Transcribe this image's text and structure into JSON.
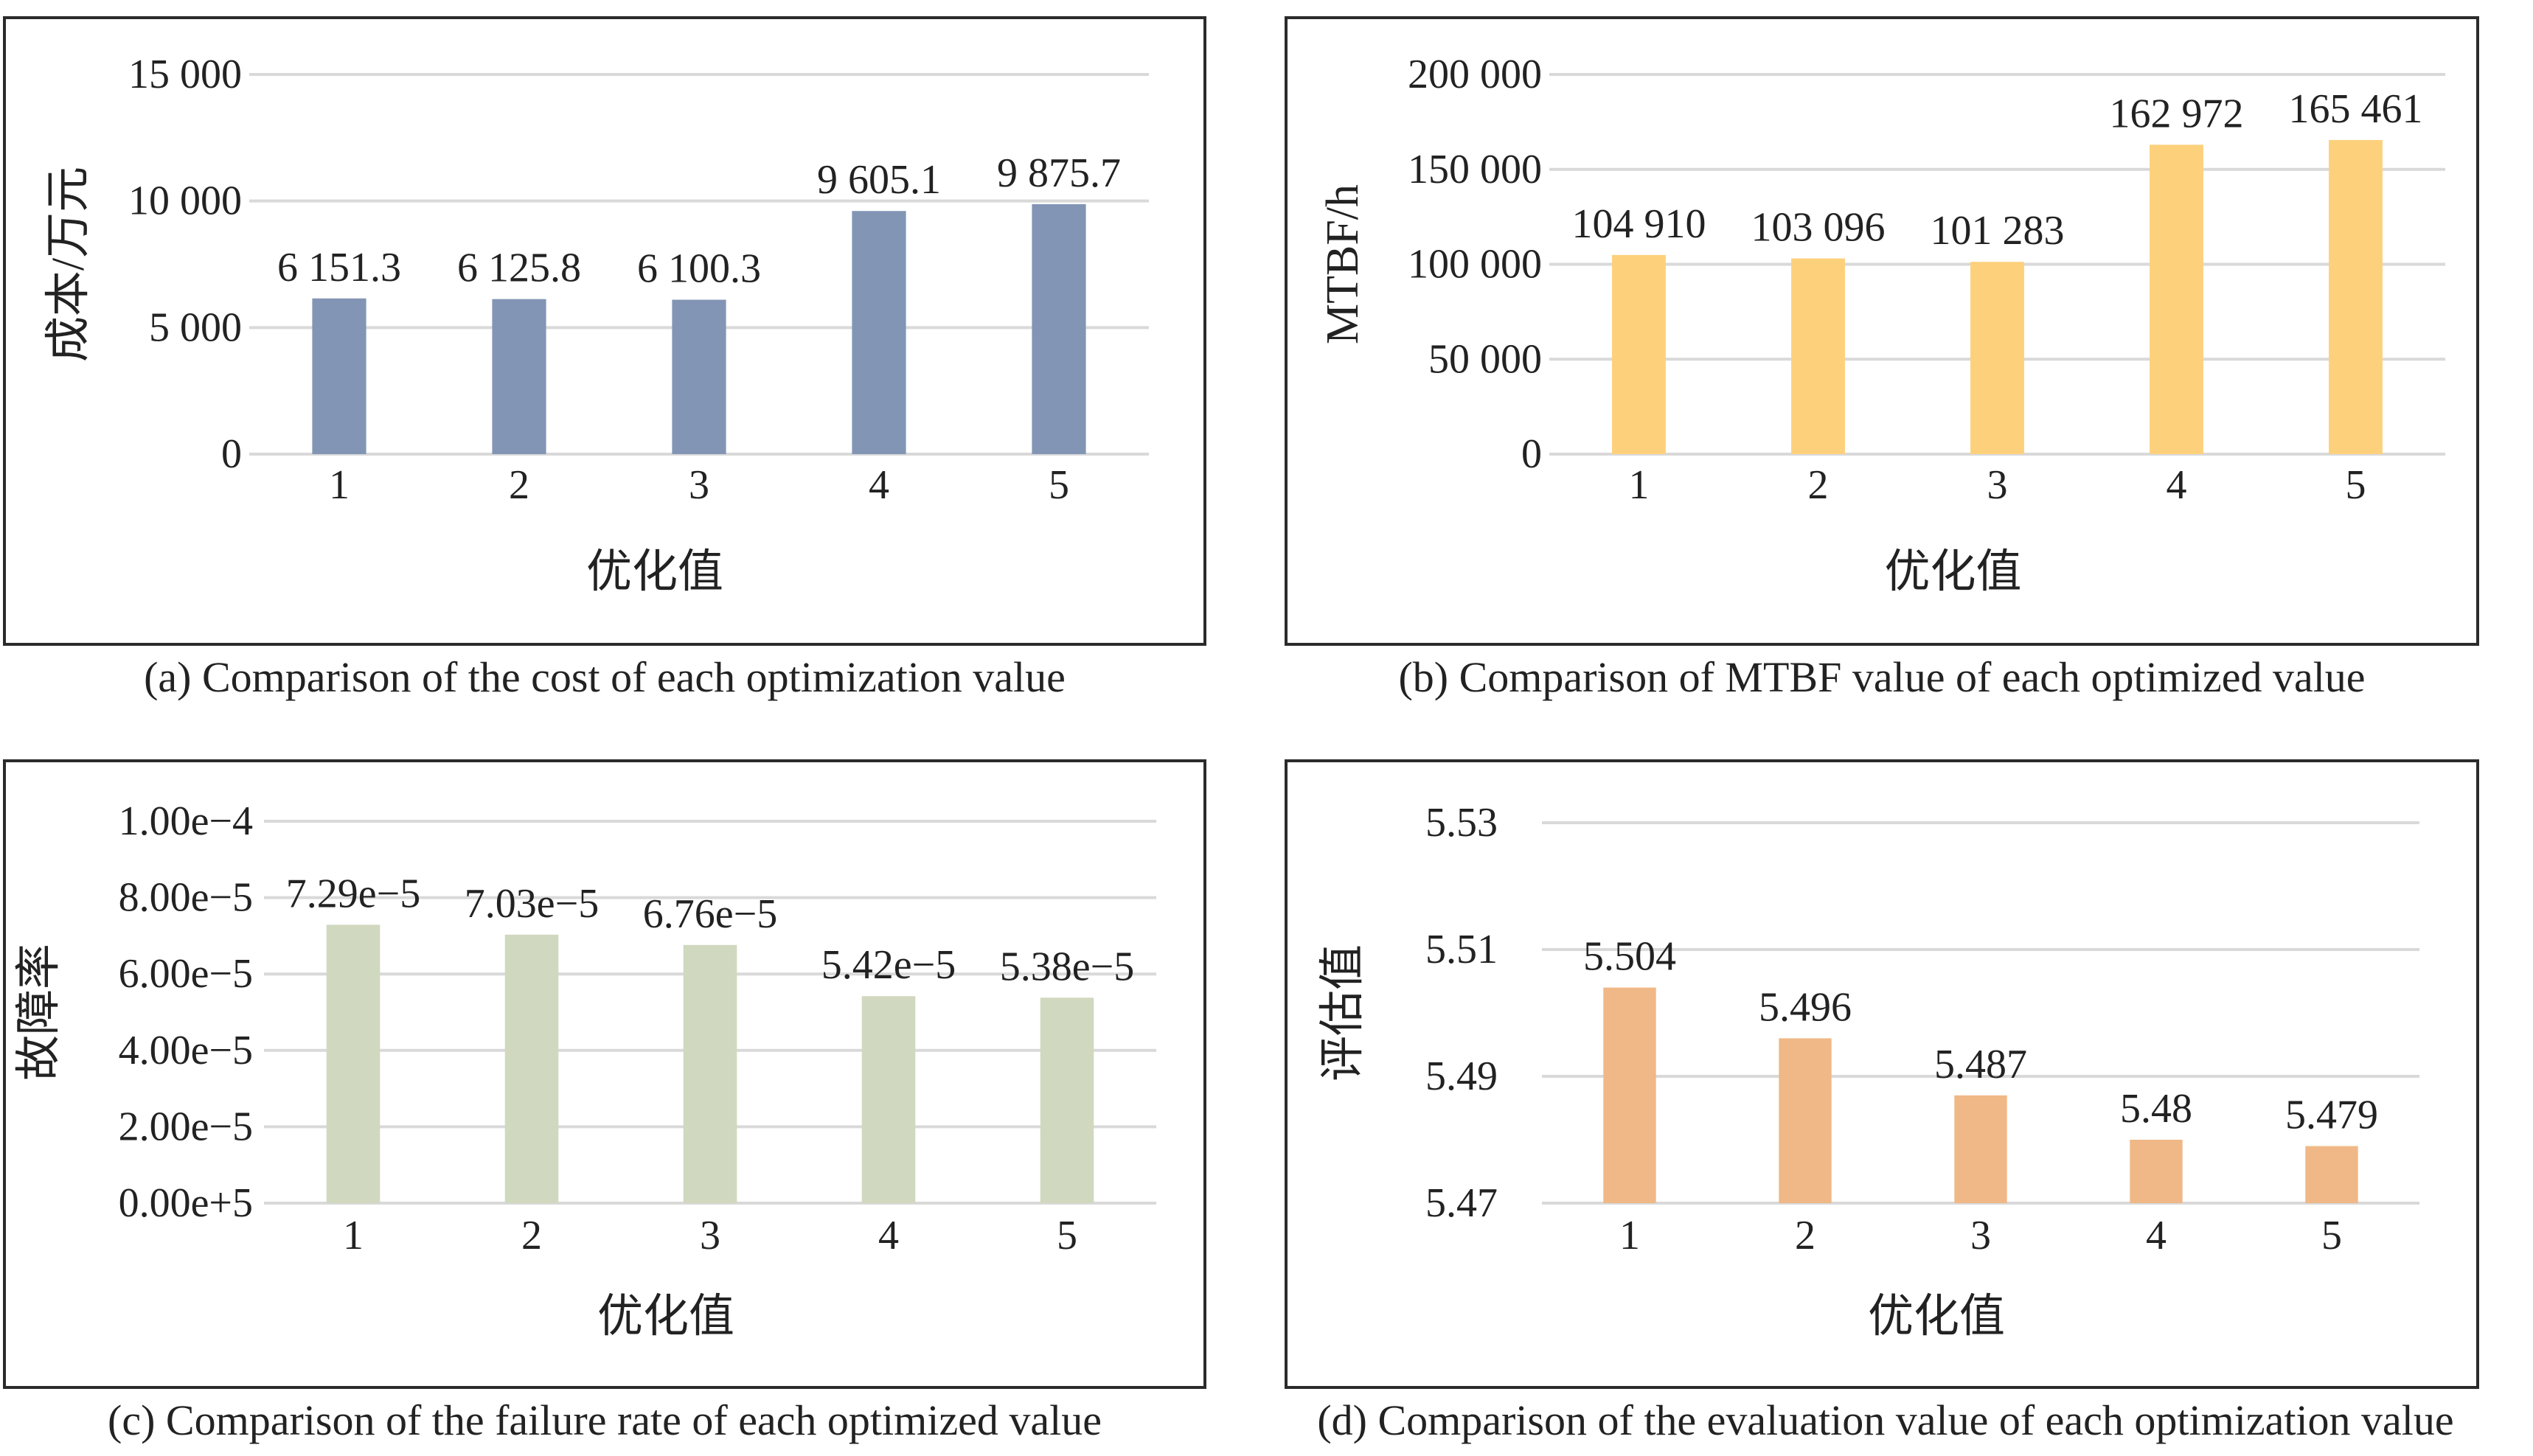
{
  "panels": [
    {
      "caption": "(a) Comparison of the cost of each optimization value",
      "chart_data": {
        "type": "bar",
        "categories": [
          "1",
          "2",
          "3",
          "4",
          "5"
        ],
        "values": [
          6151.3,
          6125.8,
          6100.3,
          9605.1,
          9875.7
        ],
        "value_labels": [
          "6 151.3",
          "6 125.8",
          "6 100.3",
          "9 605.1",
          "9 875.7"
        ],
        "xlabel": "优化值",
        "ylabel": "成本/万元",
        "ylim": [
          0,
          15000
        ],
        "yticks": [
          0,
          5000,
          10000,
          15000
        ],
        "ytick_labels": [
          "0",
          "5 000",
          "10 000",
          "15 000"
        ],
        "color": "#8295b5",
        "grid": true
      }
    },
    {
      "caption": "(b) Comparison of MTBF value of each optimized value",
      "chart_data": {
        "type": "bar",
        "categories": [
          "1",
          "2",
          "3",
          "4",
          "5"
        ],
        "values": [
          104910,
          103096,
          101283,
          162972,
          165461
        ],
        "value_labels": [
          "104 910",
          "103 096",
          "101 283",
          "162 972",
          "165 461"
        ],
        "xlabel": "优化值",
        "ylabel": "MTBF/h",
        "ylim": [
          0,
          200000
        ],
        "yticks": [
          0,
          50000,
          100000,
          150000,
          200000
        ],
        "ytick_labels": [
          "0",
          "50 000",
          "100 000",
          "150 000",
          "200 000"
        ],
        "color": "#fdd17c",
        "grid": true
      }
    },
    {
      "caption": "(c) Comparison of the failure rate of each optimized value",
      "chart_data": {
        "type": "bar",
        "categories": [
          "1",
          "2",
          "3",
          "4",
          "5"
        ],
        "values": [
          7.29e-05,
          7.03e-05,
          6.76e-05,
          5.42e-05,
          5.38e-05
        ],
        "value_labels": [
          "7.29e−5",
          "7.03e−5",
          "6.76e−5",
          "5.42e−5",
          "5.38e−5"
        ],
        "xlabel": "优化值",
        "ylabel": "故障率",
        "ylim": [
          0,
          0.0001
        ],
        "yticks": [
          0,
          2e-05,
          4e-05,
          6e-05,
          8e-05,
          0.0001
        ],
        "ytick_labels": [
          "0.00e+5",
          "2.00e−5",
          "4.00e−5",
          "6.00e−5",
          "8.00e−5",
          "1.00e−4"
        ],
        "color": "#d0d9bf",
        "grid": true
      }
    },
    {
      "caption": "(d) Comparison of the evaluation value of each optimization value",
      "chart_data": {
        "type": "bar",
        "categories": [
          "1",
          "2",
          "3",
          "4",
          "5"
        ],
        "values": [
          5.504,
          5.496,
          5.487,
          5.48,
          5.479
        ],
        "value_labels": [
          "5.504",
          "5.496",
          "5.487",
          "5.48",
          "5.479"
        ],
        "xlabel": "优化值",
        "ylabel": "评估值",
        "ylim": [
          5.47,
          5.53
        ],
        "yticks": [
          5.47,
          5.49,
          5.51,
          5.53
        ],
        "ytick_labels": [
          "5.47",
          "5.49",
          "5.51",
          "5.53"
        ],
        "color": "#f0b886",
        "grid": true
      }
    }
  ]
}
